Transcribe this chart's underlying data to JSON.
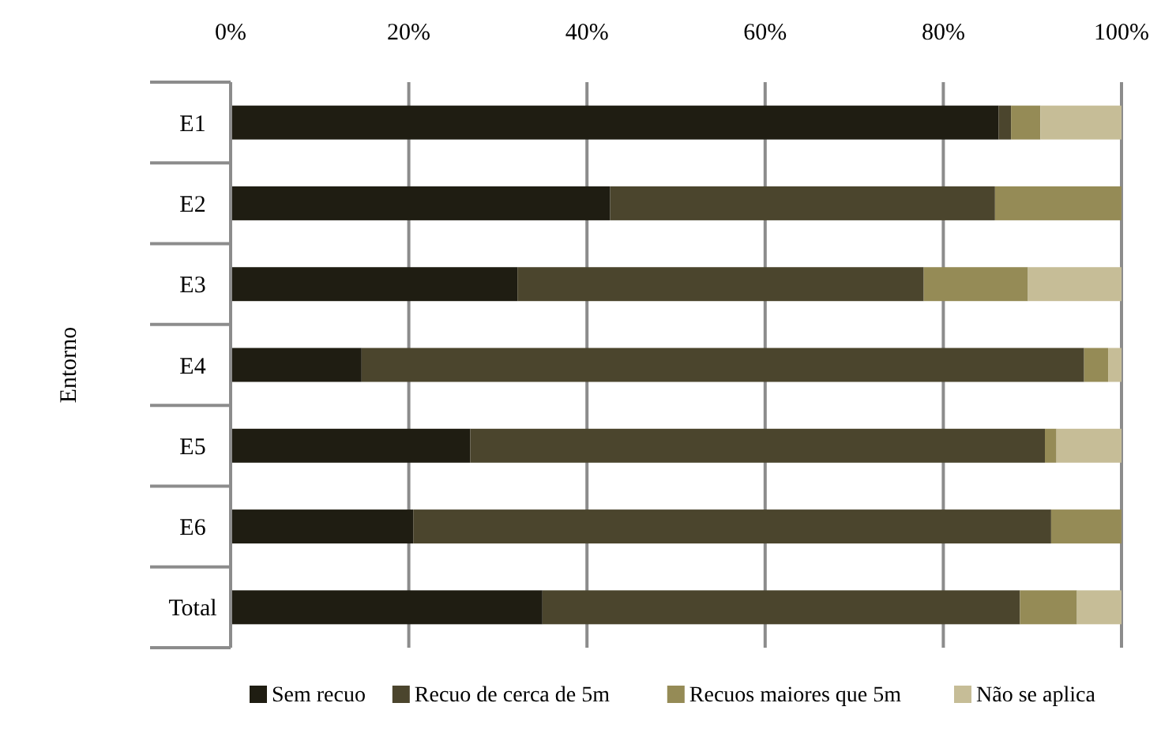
{
  "chart_data": {
    "type": "bar",
    "orientation": "horizontal",
    "stacked": true,
    "ylabel": "Entorno",
    "categories": [
      "E1",
      "E2",
      "E3",
      "E4",
      "E5",
      "E6",
      "Total"
    ],
    "series": [
      {
        "name": "Sem recuo",
        "color": "#1f1d12",
        "values": [
          86.2,
          42.6,
          32.2,
          14.7,
          26.9,
          20.5,
          35.0
        ]
      },
      {
        "name": "Recuo de cerca de 5m",
        "color": "#4b452d",
        "values": [
          1.4,
          43.2,
          45.6,
          81.1,
          64.5,
          71.6,
          53.6
        ]
      },
      {
        "name": "Recuos maiores que 5m",
        "color": "#958b56",
        "values": [
          3.3,
          14.2,
          11.7,
          2.7,
          1.3,
          7.9,
          6.4
        ]
      },
      {
        "name": "Não se aplica",
        "color": "#c6bd97",
        "values": [
          9.1,
          0,
          10.5,
          1.5,
          7.3,
          0,
          5.0
        ]
      }
    ],
    "xlim": [
      0,
      100
    ],
    "xticks": [
      {
        "value": 0,
        "label": "0%"
      },
      {
        "value": 20,
        "label": "20%"
      },
      {
        "value": 40,
        "label": "40%"
      },
      {
        "value": 60,
        "label": "60%"
      },
      {
        "value": 80,
        "label": "80%"
      },
      {
        "value": 100,
        "label": "100%"
      }
    ],
    "grid": "x",
    "legend": "bottom"
  }
}
